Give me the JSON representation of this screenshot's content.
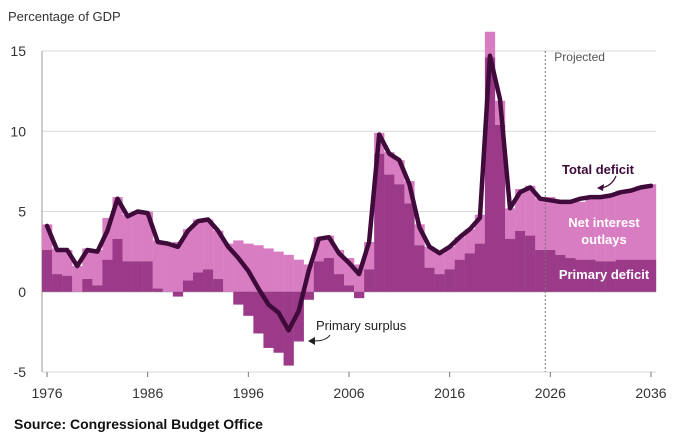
{
  "chart_data": {
    "type": "bar",
    "ylabel": "Percentage of GDP",
    "ylim": [
      -5,
      15
    ],
    "yticks": [
      -5,
      0,
      5,
      10,
      15
    ],
    "xticks": [
      1976,
      1986,
      1996,
      2006,
      2016,
      2026,
      2036
    ],
    "xlim": [
      1975.5,
      2036.5
    ],
    "projected_from": 2025.5,
    "projected_label": "Projected",
    "colors": {
      "net_interest": "#d97dc3",
      "primary": "#9b3a88",
      "total_line": "#3e0b3a",
      "grid": "#d9d9d9"
    },
    "years": [
      1976,
      1977,
      1978,
      1979,
      1980,
      1981,
      1982,
      1983,
      1984,
      1985,
      1986,
      1987,
      1988,
      1989,
      1990,
      1991,
      1992,
      1993,
      1994,
      1995,
      1996,
      1997,
      1998,
      1999,
      2000,
      2001,
      2002,
      2003,
      2004,
      2005,
      2006,
      2007,
      2008,
      2009,
      2010,
      2011,
      2012,
      2013,
      2014,
      2015,
      2016,
      2017,
      2018,
      2019,
      2020,
      2021,
      2022,
      2023,
      2024,
      2025,
      2026,
      2027,
      2028,
      2029,
      2030,
      2031,
      2032,
      2033,
      2034,
      2035,
      2036
    ],
    "series": [
      {
        "name": "Primary deficit",
        "values": [
          2.6,
          1.1,
          1.0,
          0.0,
          0.8,
          0.4,
          2.0,
          3.3,
          1.9,
          1.9,
          1.9,
          0.2,
          0.0,
          -0.3,
          0.7,
          1.2,
          1.4,
          0.8,
          0.0,
          -0.8,
          -1.5,
          -2.6,
          -3.5,
          -3.8,
          -4.6,
          -3.1,
          -0.5,
          1.9,
          2.1,
          1.1,
          0.4,
          -0.4,
          1.4,
          8.6,
          7.3,
          6.7,
          5.5,
          2.9,
          1.5,
          1.1,
          1.4,
          2.0,
          2.4,
          3.0,
          14.6,
          10.4,
          3.3,
          3.8,
          3.5,
          2.6,
          2.6,
          2.3,
          2.1,
          2.0,
          2.0,
          1.9,
          1.9,
          2.0,
          2.0,
          2.0,
          2.0
        ]
      },
      {
        "name": "Net interest outlays",
        "values": [
          1.6,
          1.6,
          1.6,
          1.6,
          1.9,
          2.2,
          2.6,
          2.6,
          2.9,
          3.1,
          3.1,
          3.0,
          3.0,
          3.1,
          3.2,
          3.3,
          3.1,
          3.0,
          3.0,
          3.2,
          3.0,
          2.9,
          2.7,
          2.5,
          2.3,
          2.0,
          1.7,
          1.5,
          1.4,
          1.5,
          1.7,
          1.7,
          1.7,
          1.3,
          1.4,
          1.5,
          1.4,
          1.3,
          1.3,
          1.3,
          1.4,
          1.4,
          1.5,
          1.8,
          1.6,
          1.5,
          1.9,
          2.6,
          3.1,
          3.2,
          3.3,
          3.4,
          3.5,
          3.6,
          3.8,
          3.9,
          4.1,
          4.3,
          4.4,
          4.6,
          4.7
        ]
      }
    ],
    "total_line": {
      "name": "Total deficit",
      "values": [
        4.1,
        2.6,
        2.6,
        1.6,
        2.6,
        2.5,
        3.8,
        5.8,
        4.7,
        5.0,
        4.9,
        3.1,
        3.0,
        2.8,
        3.8,
        4.4,
        4.5,
        3.8,
        2.8,
        2.1,
        1.3,
        0.2,
        -0.8,
        -1.3,
        -2.4,
        -1.2,
        1.3,
        3.3,
        3.4,
        2.4,
        1.8,
        1.1,
        3.1,
        9.8,
        8.6,
        8.2,
        6.7,
        4.0,
        2.8,
        2.4,
        2.8,
        3.4,
        3.9,
        4.6,
        14.7,
        12.0,
        5.2,
        6.2,
        6.5,
        5.8,
        5.7,
        5.6,
        5.6,
        5.8,
        5.9,
        5.9,
        6.0,
        6.2,
        6.3,
        6.5,
        6.6
      ]
    },
    "annotations": {
      "total_deficit": "Total deficit",
      "net_interest_line1": "Net interest",
      "net_interest_line2": "outlays",
      "primary_deficit": "Primary deficit",
      "primary_surplus": "Primary surplus"
    }
  },
  "source": "Source: Congressional Budget Office"
}
